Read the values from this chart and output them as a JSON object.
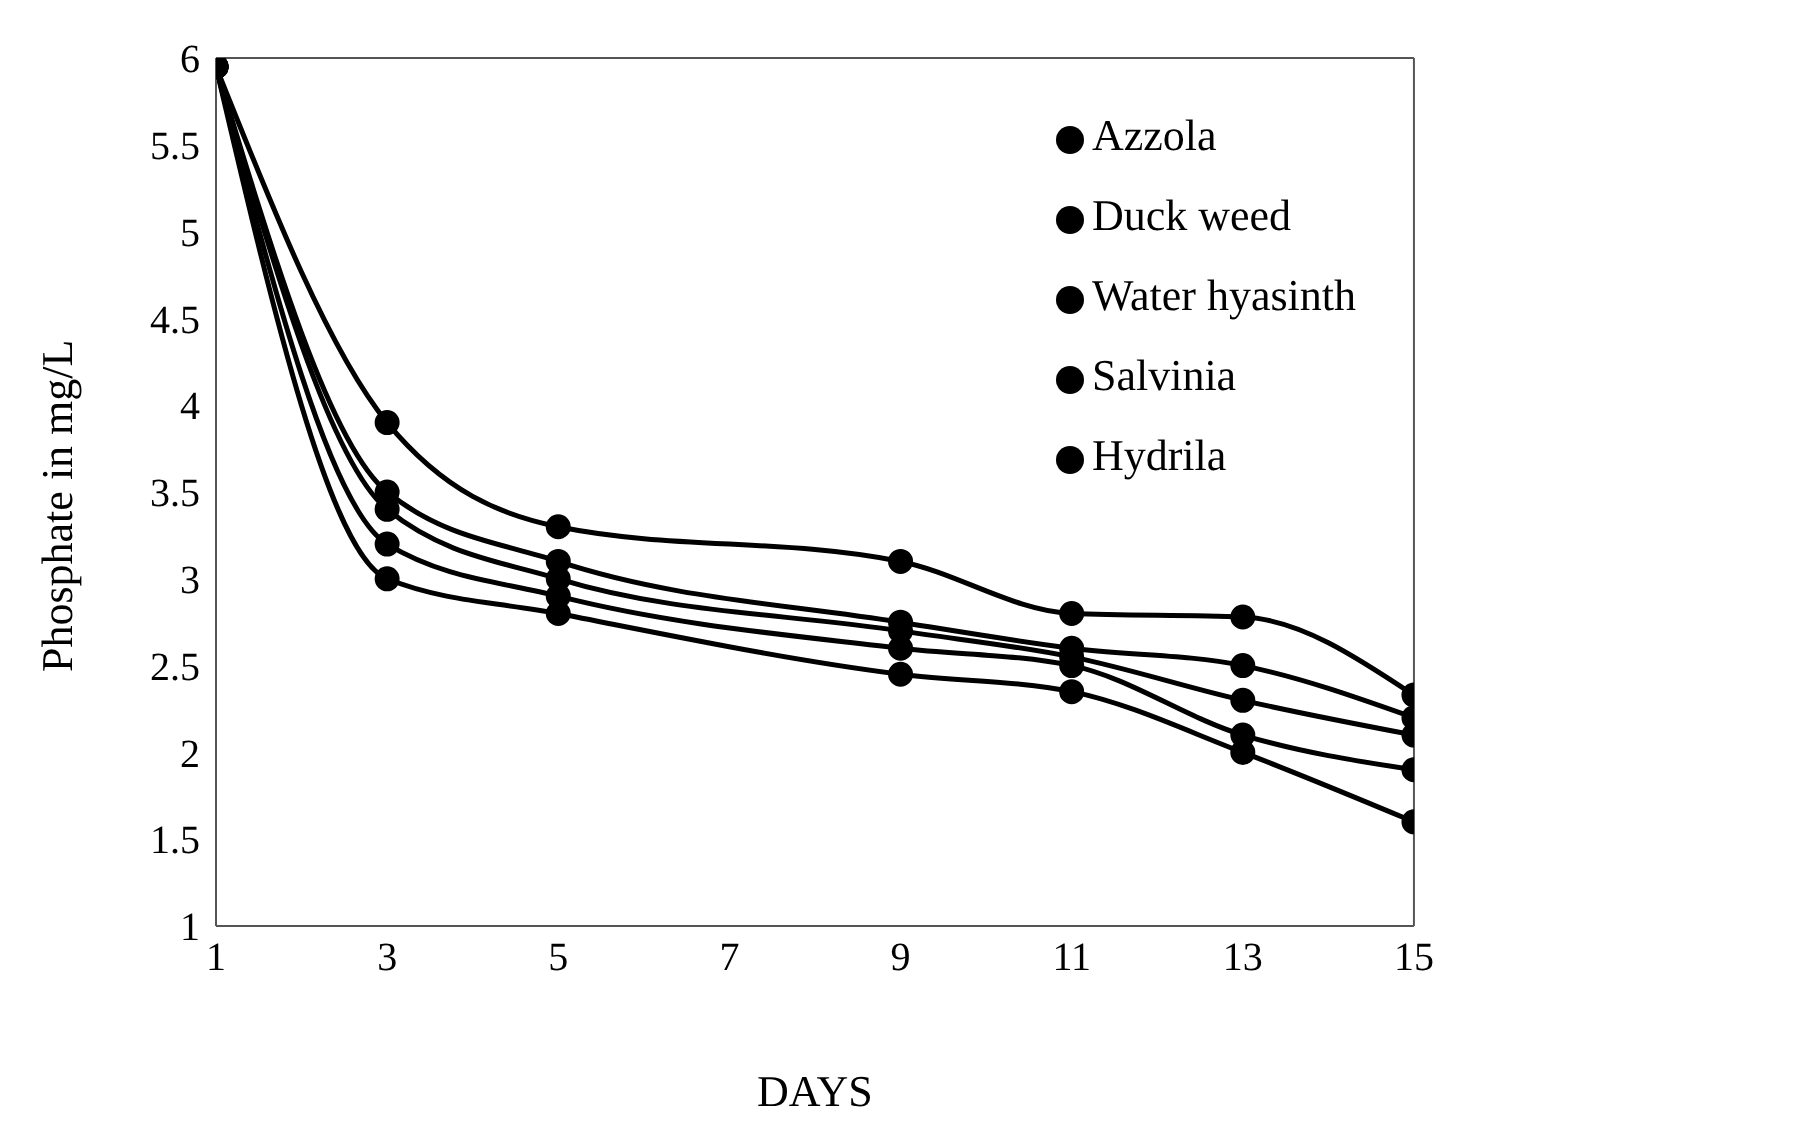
{
  "chart_data": {
    "type": "line",
    "xlabel": "DAYS",
    "ylabel": "Phosphate in mg/L",
    "x": [
      1,
      3,
      5,
      9,
      11,
      13,
      15
    ],
    "series": [
      {
        "name": "Azzola",
        "color": "#000000",
        "values": [
          5.95,
          3.5,
          3.1,
          2.75,
          2.6,
          2.5,
          2.2
        ]
      },
      {
        "name": "Duck weed",
        "color": "#000000",
        "values": [
          5.95,
          3.4,
          3.0,
          2.7,
          2.55,
          2.3,
          2.1
        ]
      },
      {
        "name": "Water hyasinth",
        "color": "#000000",
        "values": [
          5.95,
          3.2,
          2.9,
          2.6,
          2.5,
          2.1,
          1.9
        ]
      },
      {
        "name": "Salvinia",
        "color": "#000000",
        "values": [
          5.95,
          3.9,
          3.3,
          3.1,
          2.8,
          2.78,
          2.33
        ]
      },
      {
        "name": "Hydrila",
        "color": "#000000",
        "values": [
          5.95,
          3.0,
          2.8,
          2.45,
          2.35,
          2.0,
          1.6
        ]
      }
    ],
    "xlim": [
      1,
      15
    ],
    "xticks": [
      1,
      3,
      5,
      7,
      9,
      11,
      13,
      15
    ],
    "ylim": [
      1,
      6
    ],
    "yticks": [
      1,
      1.5,
      2,
      2.5,
      3,
      3.5,
      4,
      4.5,
      5,
      5.5,
      6
    ],
    "grid": false,
    "legend": "top right",
    "marker": "circle",
    "line_style": "solid"
  }
}
